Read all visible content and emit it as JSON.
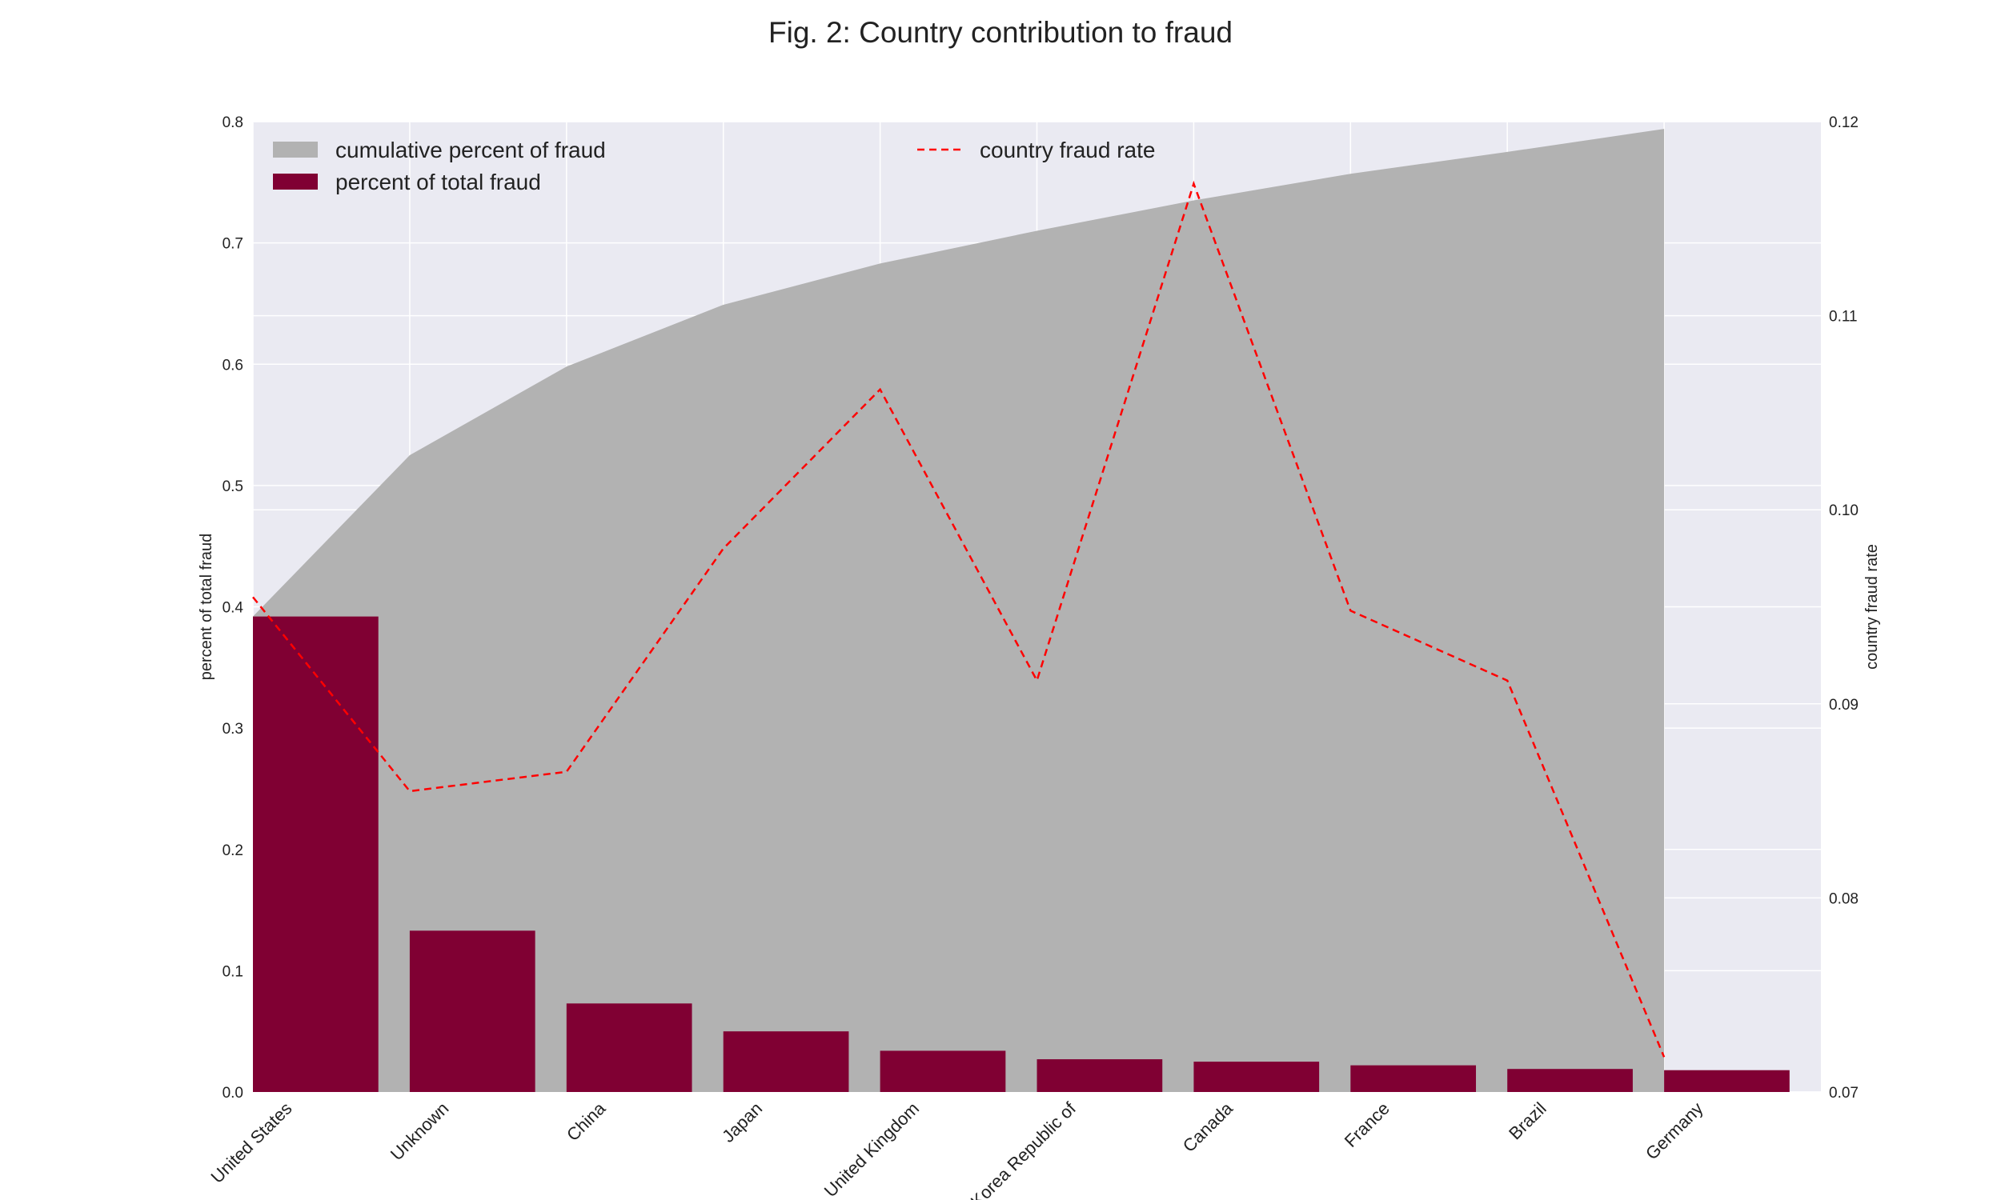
{
  "chart_data": {
    "type": "bar",
    "title": "Fig. 2: Country contribution to fraud",
    "categories": [
      "United States",
      "Unknown",
      "China",
      "Japan",
      "United Kingdom",
      "Korea Republic of",
      "Canada",
      "France",
      "Brazil",
      "Germany"
    ],
    "ylabel": "percent of total fraud",
    "y2label": "country fraud rate",
    "ylim": [
      0,
      0.8
    ],
    "y2lim": [
      0.07,
      0.12
    ],
    "yticks": [
      "0.0",
      "0.1",
      "0.2",
      "0.3",
      "0.4",
      "0.5",
      "0.6",
      "0.7",
      "0.8"
    ],
    "y2ticks": [
      "0.07",
      "0.08",
      "0.09",
      "0.10",
      "0.11",
      "0.12"
    ],
    "grid": true,
    "series": [
      {
        "name": "cumulative percent of fraud",
        "kind": "area",
        "axis": "left",
        "color": "#b2b2b2",
        "values": [
          0.392,
          0.525,
          0.598,
          0.649,
          0.683,
          0.71,
          0.735,
          0.757,
          0.775,
          0.794
        ]
      },
      {
        "name": "percent of total fraud",
        "kind": "bar",
        "axis": "left",
        "color": "#800033",
        "values": [
          0.392,
          0.133,
          0.073,
          0.05,
          0.034,
          0.027,
          0.025,
          0.022,
          0.019,
          0.018
        ]
      },
      {
        "name": "country fraud rate",
        "kind": "line",
        "style": "dashed",
        "axis": "right",
        "color": "#ff0000",
        "values": [
          0.0955,
          0.0855,
          0.0865,
          0.098,
          0.1062,
          0.0912,
          0.1168,
          0.0948,
          0.0912,
          0.0718
        ]
      }
    ],
    "legend": [
      {
        "position": "upper-left",
        "entries": [
          "cumulative percent of fraud",
          "percent of total fraud"
        ]
      },
      {
        "position": "upper-center",
        "entries": [
          "country fraud rate"
        ]
      }
    ],
    "colors": {
      "plot_background": "#eaeaf2",
      "grid": "#ffffff",
      "area": "#b2b2b2",
      "bar": "#800033",
      "line": "#ff0000"
    }
  }
}
